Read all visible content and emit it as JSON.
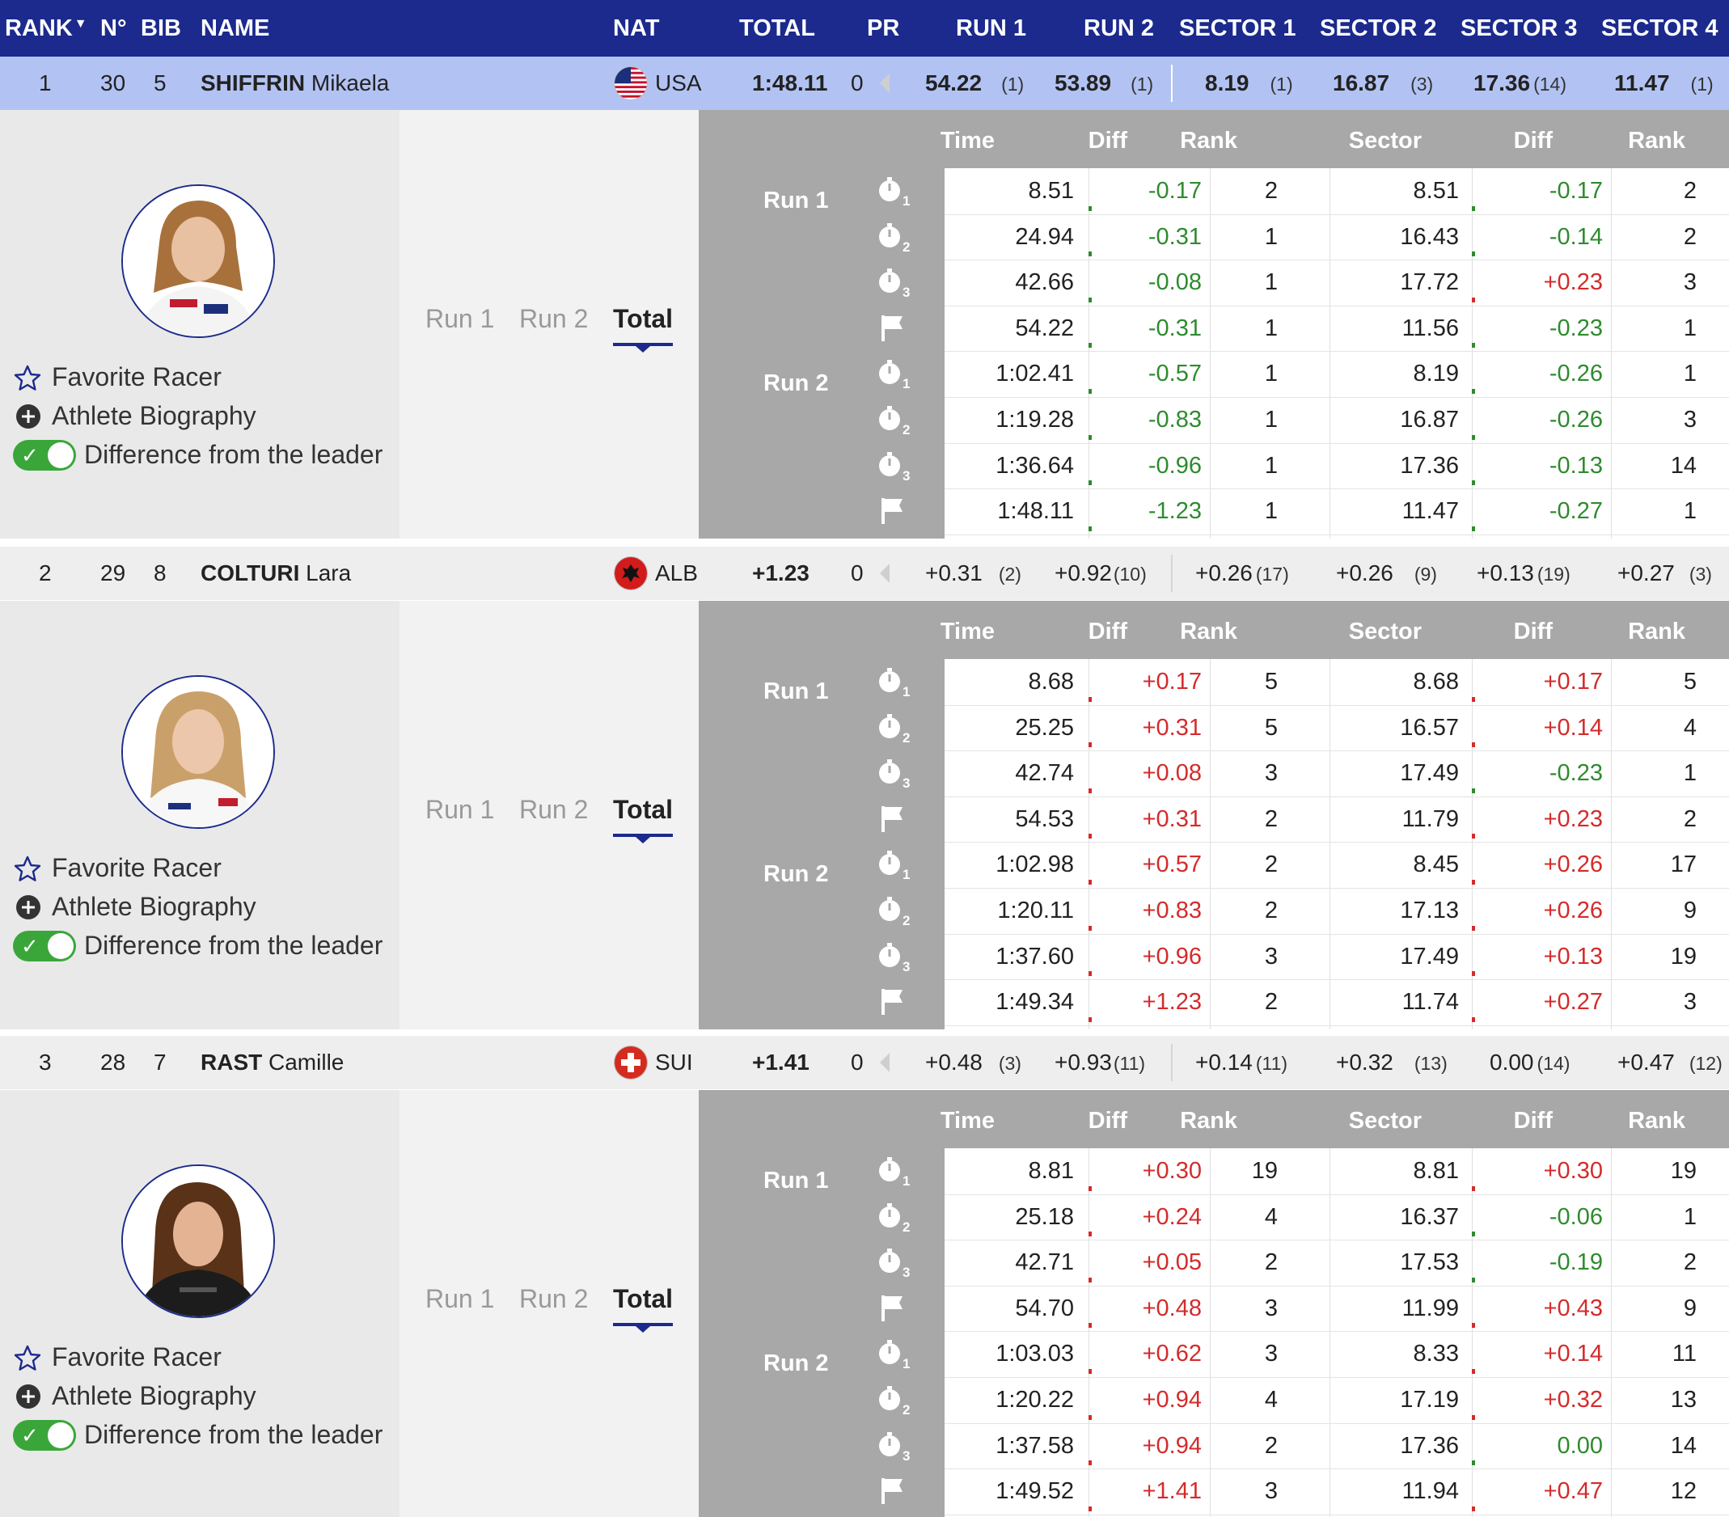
{
  "header": {
    "rank": "RANK",
    "no": "N°",
    "bib": "BIB",
    "name": "NAME",
    "nat": "NAT",
    "total": "TOTAL",
    "pr": "PR",
    "run1": "RUN 1",
    "run2": "RUN 2",
    "sector1": "SECTOR 1",
    "sector2": "SECTOR 2",
    "sector3": "SECTOR 3",
    "sector4": "SECTOR 4"
  },
  "detail_labels": {
    "favorite": "Favorite Racer",
    "bio": "Athlete Biography",
    "diff_leader": "Difference from the leader",
    "tab_run1": "Run 1",
    "tab_run2": "Run 2",
    "tab_total": "Total",
    "col_time": "Time",
    "col_diff": "Diff",
    "col_rank": "Rank",
    "col_sector": "Sector",
    "col_sdiff": "Diff",
    "col_srank": "Rank",
    "run1": "Run 1",
    "run2": "Run 2"
  },
  "athletes": [
    {
      "rank": "1",
      "no": "30",
      "bib": "5",
      "surname": "SHIFFRIN",
      "firstname": "Mikaela",
      "nat": "USA",
      "total": "1:48.11",
      "pr": "0",
      "run1": "54.22",
      "run1_rank": "(1)",
      "run2": "53.89",
      "run2_rank": "(1)",
      "s1": "8.19",
      "s1_rank": "(1)",
      "s2": "16.87",
      "s2_rank": "(3)",
      "s3": "17.36",
      "s3_rank": "(14)",
      "s4": "11.47",
      "s4_rank": "(1)",
      "splits": [
        {
          "time": "8.51",
          "diff": "-0.17",
          "rank": "2",
          "sector": "8.51",
          "sdiff": "-0.17",
          "srank": "2"
        },
        {
          "time": "24.94",
          "diff": "-0.31",
          "rank": "1",
          "sector": "16.43",
          "sdiff": "-0.14",
          "srank": "2"
        },
        {
          "time": "42.66",
          "diff": "-0.08",
          "rank": "1",
          "sector": "17.72",
          "sdiff": "+0.23",
          "srank": "3"
        },
        {
          "time": "54.22",
          "diff": "-0.31",
          "rank": "1",
          "sector": "11.56",
          "sdiff": "-0.23",
          "srank": "1"
        },
        {
          "time": "1:02.41",
          "diff": "-0.57",
          "rank": "1",
          "sector": "8.19",
          "sdiff": "-0.26",
          "srank": "1"
        },
        {
          "time": "1:19.28",
          "diff": "-0.83",
          "rank": "1",
          "sector": "16.87",
          "sdiff": "-0.26",
          "srank": "3"
        },
        {
          "time": "1:36.64",
          "diff": "-0.96",
          "rank": "1",
          "sector": "17.36",
          "sdiff": "-0.13",
          "srank": "14"
        },
        {
          "time": "1:48.11",
          "diff": "-1.23",
          "rank": "1",
          "sector": "11.47",
          "sdiff": "-0.27",
          "srank": "1"
        }
      ]
    },
    {
      "rank": "2",
      "no": "29",
      "bib": "8",
      "surname": "COLTURI",
      "firstname": "Lara",
      "nat": "ALB",
      "total": "+1.23",
      "pr": "0",
      "run1": "+0.31",
      "run1_rank": "(2)",
      "run2": "+0.92",
      "run2_rank": "(10)",
      "s1": "+0.26",
      "s1_rank": "(17)",
      "s2": "+0.26",
      "s2_rank": "(9)",
      "s3": "+0.13",
      "s3_rank": "(19)",
      "s4": "+0.27",
      "s4_rank": "(3)",
      "splits": [
        {
          "time": "8.68",
          "diff": "+0.17",
          "rank": "5",
          "sector": "8.68",
          "sdiff": "+0.17",
          "srank": "5"
        },
        {
          "time": "25.25",
          "diff": "+0.31",
          "rank": "5",
          "sector": "16.57",
          "sdiff": "+0.14",
          "srank": "4"
        },
        {
          "time": "42.74",
          "diff": "+0.08",
          "rank": "3",
          "sector": "17.49",
          "sdiff": "-0.23",
          "srank": "1"
        },
        {
          "time": "54.53",
          "diff": "+0.31",
          "rank": "2",
          "sector": "11.79",
          "sdiff": "+0.23",
          "srank": "2"
        },
        {
          "time": "1:02.98",
          "diff": "+0.57",
          "rank": "2",
          "sector": "8.45",
          "sdiff": "+0.26",
          "srank": "17"
        },
        {
          "time": "1:20.11",
          "diff": "+0.83",
          "rank": "2",
          "sector": "17.13",
          "sdiff": "+0.26",
          "srank": "9"
        },
        {
          "time": "1:37.60",
          "diff": "+0.96",
          "rank": "3",
          "sector": "17.49",
          "sdiff": "+0.13",
          "srank": "19"
        },
        {
          "time": "1:49.34",
          "diff": "+1.23",
          "rank": "2",
          "sector": "11.74",
          "sdiff": "+0.27",
          "srank": "3"
        }
      ]
    },
    {
      "rank": "3",
      "no": "28",
      "bib": "7",
      "surname": "RAST",
      "firstname": "Camille",
      "nat": "SUI",
      "total": "+1.41",
      "pr": "0",
      "run1": "+0.48",
      "run1_rank": "(3)",
      "run2": "+0.93",
      "run2_rank": "(11)",
      "s1": "+0.14",
      "s1_rank": "(11)",
      "s2": "+0.32",
      "s2_rank": "(13)",
      "s3": "0.00",
      "s3_rank": "(14)",
      "s4": "+0.47",
      "s4_rank": "(12)",
      "splits": [
        {
          "time": "8.81",
          "diff": "+0.30",
          "rank": "19",
          "sector": "8.81",
          "sdiff": "+0.30",
          "srank": "19"
        },
        {
          "time": "25.18",
          "diff": "+0.24",
          "rank": "4",
          "sector": "16.37",
          "sdiff": "-0.06",
          "srank": "1"
        },
        {
          "time": "42.71",
          "diff": "+0.05",
          "rank": "2",
          "sector": "17.53",
          "sdiff": "-0.19",
          "srank": "2"
        },
        {
          "time": "54.70",
          "diff": "+0.48",
          "rank": "3",
          "sector": "11.99",
          "sdiff": "+0.43",
          "srank": "9"
        },
        {
          "time": "1:03.03",
          "diff": "+0.62",
          "rank": "3",
          "sector": "8.33",
          "sdiff": "+0.14",
          "srank": "11"
        },
        {
          "time": "1:20.22",
          "diff": "+0.94",
          "rank": "4",
          "sector": "17.19",
          "sdiff": "+0.32",
          "srank": "13"
        },
        {
          "time": "1:37.58",
          "diff": "+0.94",
          "rank": "2",
          "sector": "17.36",
          "sdiff": "0.00",
          "srank": "14"
        },
        {
          "time": "1:49.52",
          "diff": "+1.41",
          "rank": "3",
          "sector": "11.94",
          "sdiff": "+0.47",
          "srank": "12"
        }
      ]
    }
  ],
  "split_icons": [
    "stopwatch-1-icon",
    "stopwatch-2-icon",
    "stopwatch-3-icon",
    "finish-flag-icon",
    "stopwatch-1-icon",
    "stopwatch-2-icon",
    "stopwatch-3-icon",
    "finish-flag-icon"
  ],
  "colors": {
    "header_bg": "#1b2a8c",
    "leader_row_bg": "#b2c3f3",
    "negative": "#2e8b2e",
    "positive": "#d42b2b",
    "toggle_on": "#3aa63a"
  }
}
